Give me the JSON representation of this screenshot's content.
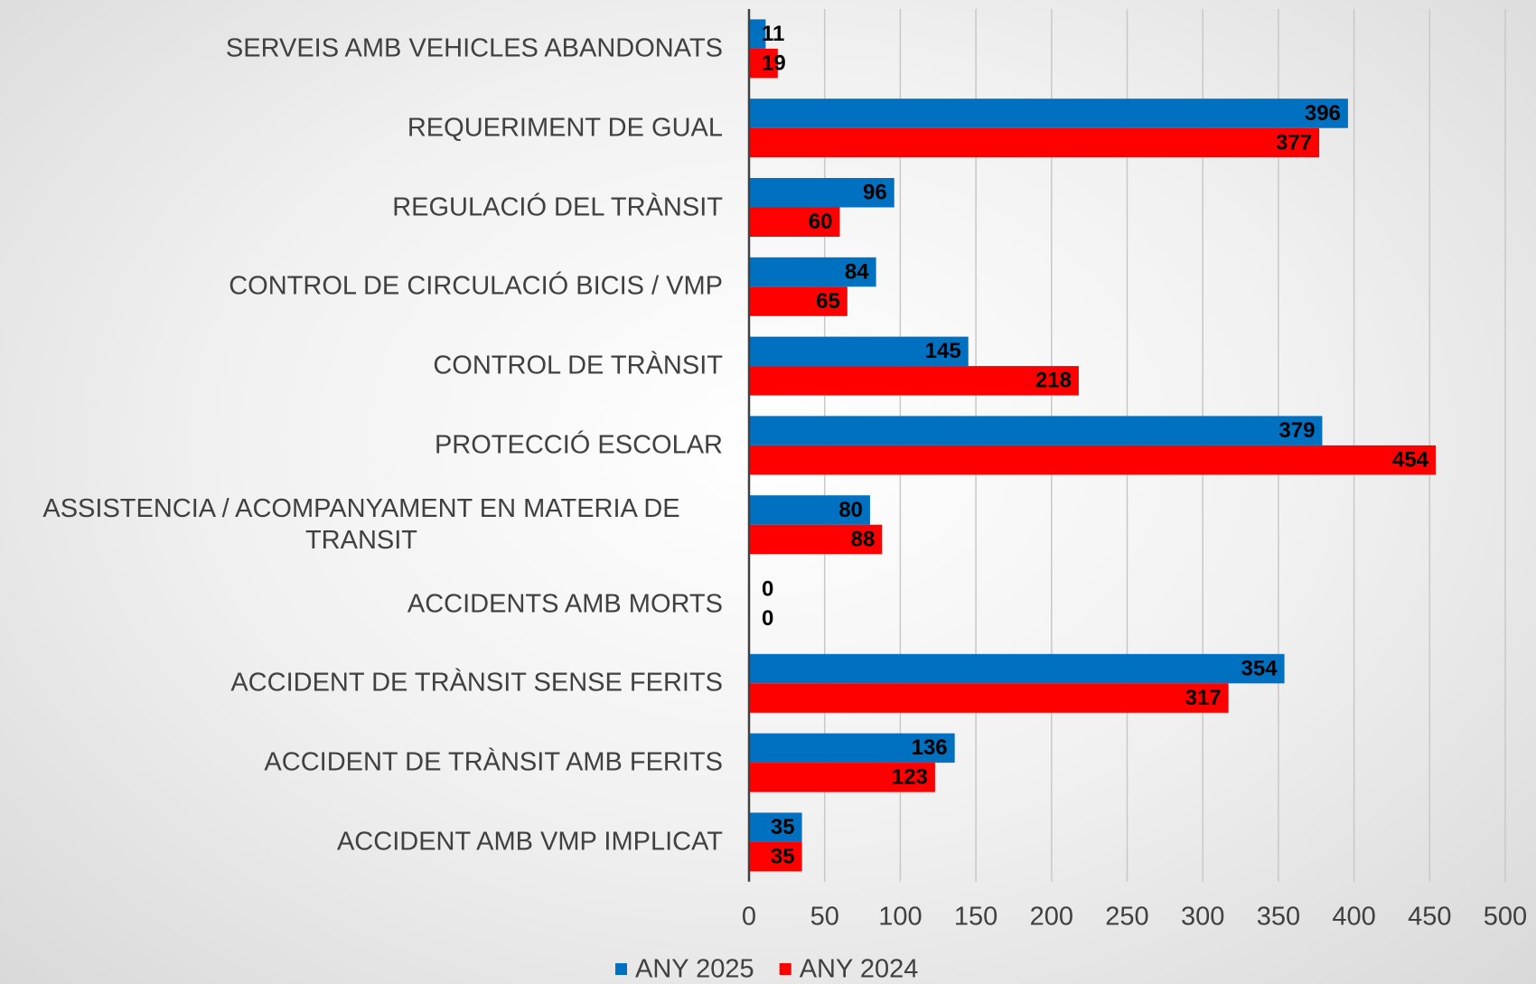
{
  "chart_data": {
    "type": "hbar",
    "categories": [
      "SERVEIS AMB VEHICLES ABANDONATS",
      "REQUERIMENT DE GUAL",
      "REGULACIÓ DEL TRÀNSIT",
      "CONTROL DE CIRCULACIÓ BICIS / VMP",
      "CONTROL DE TRÀNSIT",
      "PROTECCIÓ ESCOLAR",
      "ASSISTENCIA / ACOMPANYAMENT EN MATERIA DE TRANSIT",
      "ACCIDENTS AMB MORTS",
      "ACCIDENT DE TRÀNSIT SENSE FERITS",
      "ACCIDENT DE TRÀNSIT AMB FERITS",
      "ACCIDENT AMB VMP IMPLICAT"
    ],
    "series": [
      {
        "name": "ANY 2025",
        "color": "#0070c0",
        "values": [
          11,
          396,
          96,
          84,
          145,
          379,
          80,
          0,
          354,
          136,
          35
        ]
      },
      {
        "name": "ANY 2024",
        "color": "#ff0000",
        "values": [
          19,
          377,
          60,
          65,
          218,
          454,
          88,
          0,
          317,
          123,
          35
        ]
      }
    ],
    "xlim": [
      0,
      500
    ],
    "xticks": [
      0,
      50,
      100,
      150,
      200,
      250,
      300,
      350,
      400,
      450,
      500
    ],
    "grid": true,
    "legend": "bottom"
  }
}
